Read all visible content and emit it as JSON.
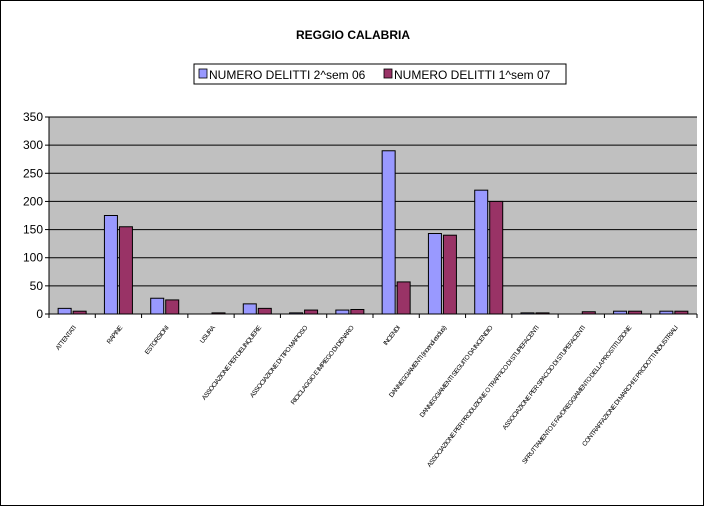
{
  "chart_data": {
    "type": "bar",
    "title": "REGGIO CALABRIA",
    "xlabel": "",
    "ylabel": "",
    "ylim": [
      0,
      350
    ],
    "yticks": [
      0,
      50,
      100,
      150,
      200,
      250,
      300,
      350
    ],
    "grid": true,
    "legend_position": "top",
    "categories": [
      "ATTENTATI",
      "RAPINE",
      "ESTORSIONI",
      "USURA",
      "ASSOCIAZIONE PER DELINQUERE",
      "ASSOCIAZIONE DI TIPO MAFIOSO",
      "RICICLAGGIO E IMPIEGO DI DENARO",
      "INCENDI",
      "DANNEGGIAMENTI (incendi esclusi)",
      "DANNEGGIAMENTI SEGUITO DA INCENDIO",
      "ASSOCIAZIONE PER PRODUZIONE O TRAFFICO DI STUPEFACENTI",
      "ASSOCIAZIONE PER SPACCIO DI STUPEFACENTI",
      "SFRUTTAMENTO E FAVOREGGIAMENTO DELLA PROSTITUZIONE",
      "CONTRAFFAZIONE DI MARCHI E PRODOTTI INDUSTRIALI"
    ],
    "series": [
      {
        "name": "NUMERO DELITTI 2^sem 06",
        "color": "#9999ff",
        "values": [
          10,
          175,
          28,
          0,
          18,
          2,
          7,
          290,
          143,
          220,
          2,
          0,
          5,
          5
        ]
      },
      {
        "name": "NUMERO DELITTI 1^sem 07",
        "color": "#993366",
        "values": [
          5,
          155,
          25,
          2,
          10,
          7,
          8,
          57,
          140,
          200,
          2,
          4,
          5,
          5
        ]
      }
    ],
    "plot_background": "#c0c0c0"
  }
}
